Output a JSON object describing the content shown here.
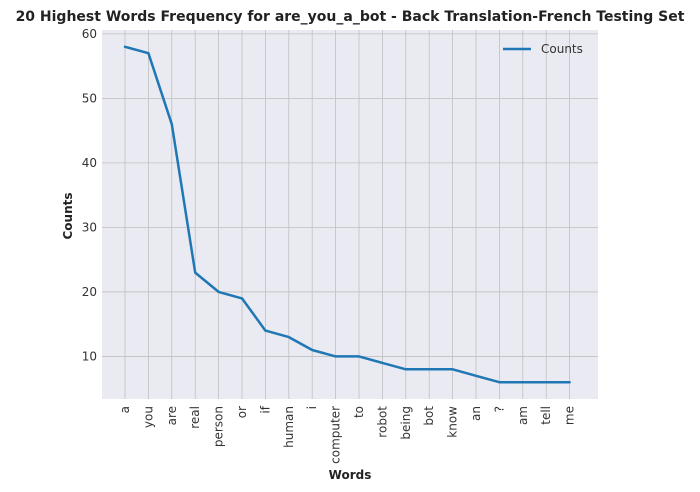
{
  "chart_data": {
    "type": "line",
    "title": "20 Highest Words Frequency for are_you_a_bot - Back Translation-French Testing Set",
    "xlabel": "Words",
    "ylabel": "Counts",
    "categories": [
      "a",
      "you",
      "are",
      "real",
      "person",
      "or",
      "if",
      "human",
      "i",
      "computer",
      "to",
      "robot",
      "being",
      "bot",
      "know",
      "an",
      "?",
      "am",
      "tell",
      "me"
    ],
    "series": [
      {
        "name": "Counts",
        "values": [
          58,
          57,
          46,
          23,
          20,
          19,
          14,
          13,
          11,
          10,
          10,
          9,
          8,
          8,
          8,
          7,
          6,
          6,
          6,
          6
        ],
        "color": "#1f77b4"
      }
    ],
    "ylim": [
      3.4,
      60.6
    ],
    "yticks": [
      10,
      20,
      30,
      40,
      50,
      60
    ],
    "grid": true,
    "legend": "top-right",
    "colors": {
      "plot_background": "#eaeaf2",
      "grid": "#c0c0c0",
      "line": "#1f77b4"
    }
  }
}
